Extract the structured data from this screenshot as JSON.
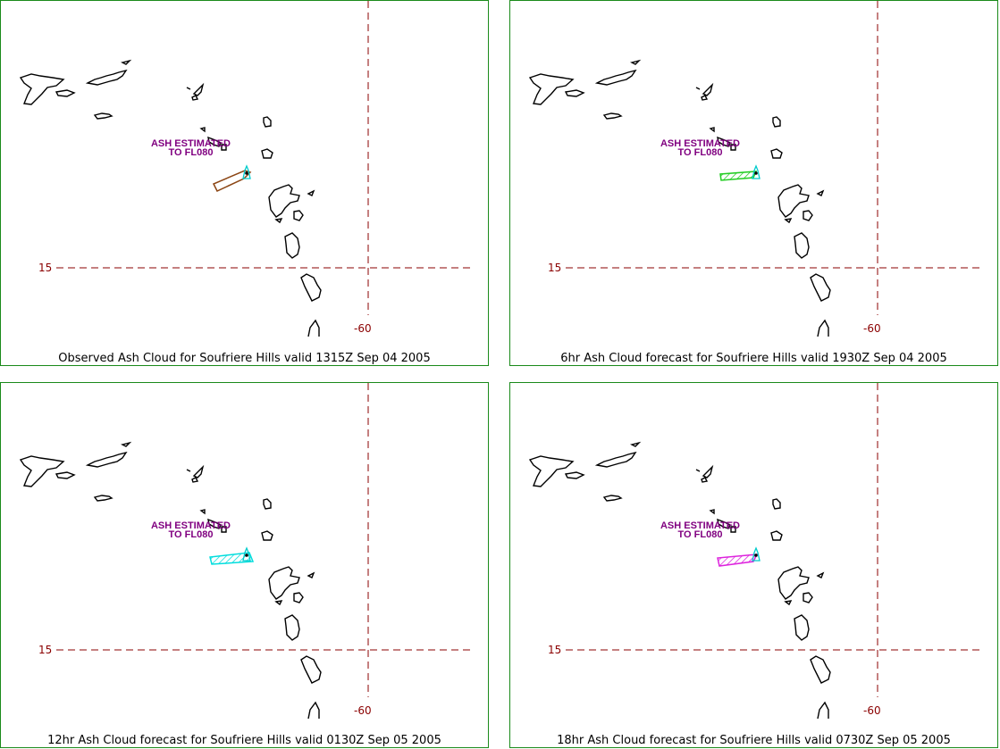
{
  "panels": [
    {
      "caption": "Observed Ash Cloud for Soufriere  Hills valid 1315Z Sep 04 2005",
      "lat_label": "15",
      "lon_label": "-60",
      "note_line1": "ASH ESTIMATED",
      "note_line2": "TO FL080",
      "ash_color": "#8b4513",
      "style": "outline"
    },
    {
      "caption": "6hr Ash Cloud forecast for Soufriere  Hills valid 1930Z Sep 04 2005",
      "lat_label": "15",
      "lon_label": "-60",
      "note_line1": "ASH ESTIMATED",
      "note_line2": "TO FL080",
      "ash_color": "#22cc22",
      "style": "hatched"
    },
    {
      "caption": "12hr Ash Cloud forecast for Soufriere  Hills valid 0130Z Sep 05 2005",
      "lat_label": "15",
      "lon_label": "-60",
      "note_line1": "ASH ESTIMATED",
      "note_line2": "TO FL080",
      "ash_color": "#00dddd",
      "style": "hatched"
    },
    {
      "caption": "18hr Ash Cloud forecast for Soufriere  Hills valid 0730Z Sep 05 2005",
      "lat_label": "15",
      "lon_label": "-60",
      "note_line1": "ASH ESTIMATED",
      "note_line2": "TO FL080",
      "ash_color": "#dd22dd",
      "style": "hatched"
    }
  ],
  "colors": {
    "border": "#1a8a1a",
    "gridline": "#8b0000",
    "coastline": "#000000",
    "volcano_marker": "#00cccc"
  }
}
